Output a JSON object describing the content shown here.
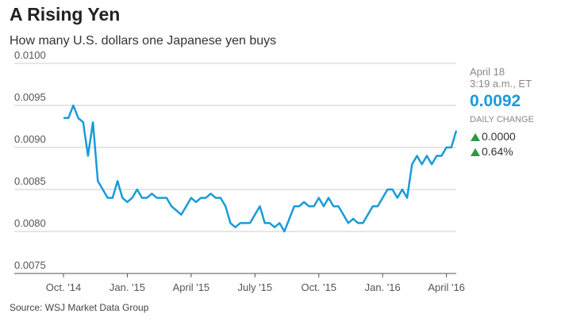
{
  "title": "A Rising Yen",
  "subtitle": "How many U.S. dollars one Japanese yen buys",
  "source": "Source: WSJ Market Data Group",
  "sidebar": {
    "date": "April 18",
    "time": "3:19 a.m., ET",
    "value": "0.0092",
    "change_label": "DAILY CHANGE",
    "change_abs": "0.0000",
    "change_pct": "0.64%"
  },
  "chart_data": {
    "type": "line",
    "color": "#1a9bd7",
    "grid": true,
    "categories": [
      "Oct. '14",
      null,
      null,
      null,
      null,
      null,
      null,
      null,
      null,
      null,
      null,
      null,
      null,
      "Jan. '15",
      null,
      null,
      null,
      null,
      null,
      null,
      null,
      null,
      null,
      null,
      null,
      null,
      "April '15",
      null,
      null,
      null,
      null,
      null,
      null,
      null,
      null,
      null,
      null,
      null,
      null,
      "July '15",
      null,
      null,
      null,
      null,
      null,
      null,
      null,
      null,
      null,
      null,
      null,
      null,
      "Oct. '15",
      null,
      null,
      null,
      null,
      null,
      null,
      null,
      null,
      null,
      null,
      null,
      null,
      "Jan. '16",
      null,
      null,
      null,
      null,
      null,
      null,
      null,
      null,
      null,
      null,
      null,
      null,
      "April '16",
      null,
      null
    ],
    "values": [
      0.00935,
      0.00935,
      0.0095,
      0.00935,
      0.0093,
      0.0089,
      0.0093,
      0.0086,
      0.0085,
      0.0084,
      0.0084,
      0.0086,
      0.0084,
      0.00835,
      0.0084,
      0.0085,
      0.0084,
      0.0084,
      0.00845,
      0.0084,
      0.0084,
      0.0084,
      0.0083,
      0.00825,
      0.0082,
      0.0083,
      0.0084,
      0.00835,
      0.0084,
      0.0084,
      0.00845,
      0.0084,
      0.0084,
      0.0083,
      0.0081,
      0.00805,
      0.0081,
      0.0081,
      0.0081,
      0.0082,
      0.0083,
      0.0081,
      0.0081,
      0.00805,
      0.0081,
      0.008,
      0.00815,
      0.0083,
      0.0083,
      0.00835,
      0.0083,
      0.0083,
      0.0084,
      0.0083,
      0.0084,
      0.0083,
      0.0083,
      0.0082,
      0.0081,
      0.00815,
      0.0081,
      0.0081,
      0.0082,
      0.0083,
      0.0083,
      0.0084,
      0.0085,
      0.0085,
      0.0084,
      0.0085,
      0.0084,
      0.0088,
      0.0089,
      0.0088,
      0.0089,
      0.0088,
      0.0089,
      0.0089,
      0.009,
      0.009,
      0.0092
    ],
    "ylim": [
      0.0075,
      0.01
    ],
    "yticks": [
      {
        "value": 0.0075,
        "label": "0.0075"
      },
      {
        "value": 0.008,
        "label": "0.0080"
      },
      {
        "value": 0.0085,
        "label": "0.0085"
      },
      {
        "value": 0.009,
        "label": "0.0090"
      },
      {
        "value": 0.0095,
        "label": "0.0095"
      },
      {
        "value": 0.01,
        "label": "0.0100"
      }
    ]
  }
}
